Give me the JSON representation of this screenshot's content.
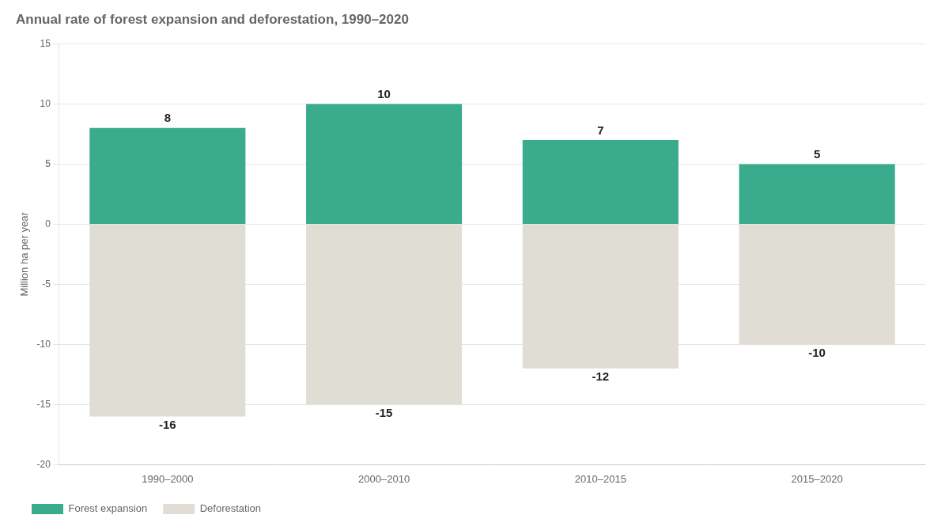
{
  "chart_data": {
    "type": "bar",
    "title": "Annual rate of forest expansion and deforestation, 1990–2020",
    "categories": [
      "1990–2000",
      "2000–2010",
      "2010–2015",
      "2015–2020"
    ],
    "series": [
      {
        "name": "Forest expansion",
        "color": "#3aab8c",
        "values": [
          8,
          10,
          7,
          5
        ]
      },
      {
        "name": "Deforestation",
        "color": "#e0ddd5",
        "values": [
          -16,
          -15,
          -12,
          -10
        ]
      }
    ],
    "ylabel": "Million ha per year",
    "ylim": [
      -20,
      15
    ],
    "yticks": [
      -20,
      -15,
      -10,
      -5,
      0,
      5,
      10,
      15
    ],
    "grid": true,
    "stacked": true,
    "data_labels": true,
    "legend": "bottom"
  }
}
